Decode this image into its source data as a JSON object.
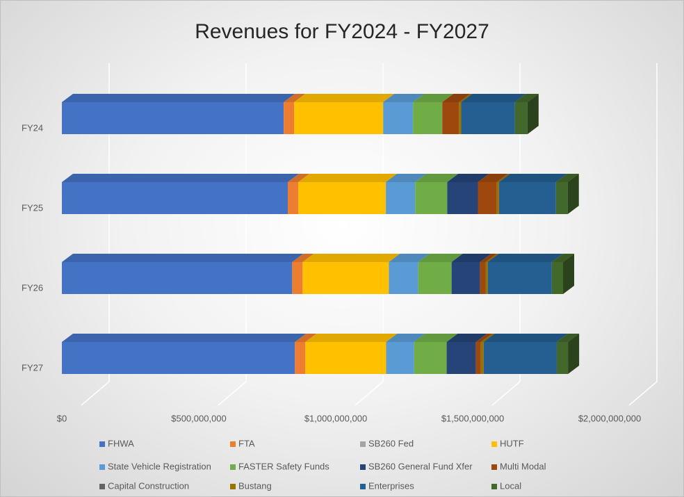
{
  "chart_data": {
    "type": "bar3d_stacked_horizontal",
    "title": "Revenues for FY2024 - FY2027",
    "categories": [
      "FY24",
      "FY25",
      "FY26",
      "FY27"
    ],
    "xlim": [
      0,
      2000000000
    ],
    "xticks": [
      {
        "value": 0,
        "label": "$0"
      },
      {
        "value": 500000000,
        "label": "$500,000,000"
      },
      {
        "value": 1000000000,
        "label": "$1,000,000,000"
      },
      {
        "value": 1500000000,
        "label": "$1,500,000,000"
      },
      {
        "value": 2000000000,
        "label": "$2,000,000,000"
      }
    ],
    "grid": true,
    "legend": "bottom",
    "series": [
      {
        "name": "FHWA",
        "color": "#4472c4",
        "values": [
          810000000,
          825000000,
          841000000,
          851000000
        ]
      },
      {
        "name": "FTA",
        "color": "#ed7d31",
        "values": [
          38000000,
          38000000,
          38000000,
          38000000
        ]
      },
      {
        "name": "SB260 Fed",
        "color": "#a5a5a5",
        "values": [
          0,
          0,
          0,
          0
        ]
      },
      {
        "name": "HUTF",
        "color": "#ffc000",
        "values": [
          325000000,
          320000000,
          315000000,
          295000000
        ]
      },
      {
        "name": "State Vehicle Registration",
        "color": "#5b9bd5",
        "values": [
          109000000,
          107000000,
          107000000,
          102000000
        ]
      },
      {
        "name": "FASTER Safety Funds",
        "color": "#70ad47",
        "values": [
          107000000,
          117000000,
          122000000,
          119000000
        ]
      },
      {
        "name": "SB260 General Fund Xfer",
        "color": "#264478",
        "values": [
          0,
          112000000,
          104000000,
          107000000
        ]
      },
      {
        "name": "Multi Modal",
        "color": "#9e480e",
        "values": [
          61000000,
          69000000,
          20000000,
          18000000
        ]
      },
      {
        "name": "Capital Construction",
        "color": "#636363",
        "values": [
          0,
          0,
          0,
          0
        ]
      },
      {
        "name": "Bustang",
        "color": "#997300",
        "values": [
          8000000,
          8000000,
          8000000,
          10000000
        ]
      },
      {
        "name": "Enterprises",
        "color": "#255e91",
        "values": [
          196000000,
          208000000,
          234000000,
          267000000
        ]
      },
      {
        "name": "Local",
        "color": "#43682b",
        "values": [
          46000000,
          43000000,
          41000000,
          41000000
        ]
      }
    ]
  }
}
